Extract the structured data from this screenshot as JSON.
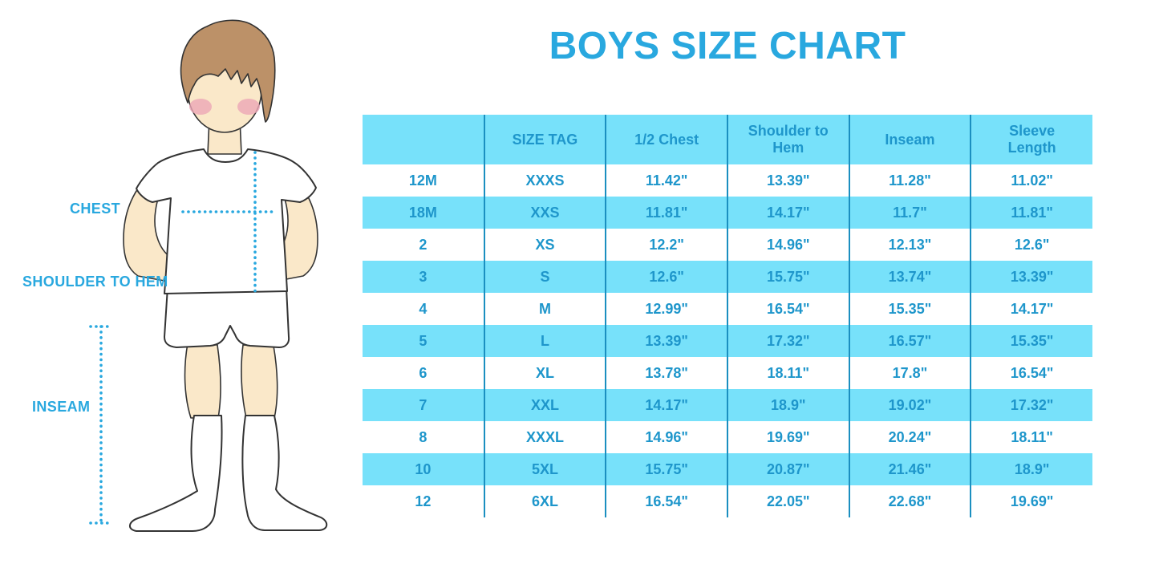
{
  "title": "BOYS SIZE CHART",
  "illustration": {
    "labels": {
      "chest": "CHEST",
      "shoulder_to_hem": "SHOULDER TO HEM",
      "inseam": "INSEAM"
    }
  },
  "table": {
    "headers": [
      "",
      "SIZE TAG",
      "1/2 Chest",
      "Shoulder to Hem",
      "Inseam",
      "Sleeve Length"
    ],
    "rows": [
      [
        "12M",
        "XXXS",
        "11.42\"",
        "13.39\"",
        "11.28\"",
        "11.02\""
      ],
      [
        "18M",
        "XXS",
        "11.81\"",
        "14.17\"",
        "11.7\"",
        "11.81\""
      ],
      [
        "2",
        "XS",
        "12.2\"",
        "14.96\"",
        "12.13\"",
        "12.6\""
      ],
      [
        "3",
        "S",
        "12.6\"",
        "15.75\"",
        "13.74\"",
        "13.39\""
      ],
      [
        "4",
        "M",
        "12.99\"",
        "16.54\"",
        "15.35\"",
        "14.17\""
      ],
      [
        "5",
        "L",
        "13.39\"",
        "17.32\"",
        "16.57\"",
        "15.35\""
      ],
      [
        "6",
        "XL",
        "13.78\"",
        "18.11\"",
        "17.8\"",
        "16.54\""
      ],
      [
        "7",
        "XXL",
        "14.17\"",
        "18.9\"",
        "19.02\"",
        "17.32\""
      ],
      [
        "8",
        "XXXL",
        "14.96\"",
        "19.69\"",
        "20.24\"",
        "18.11\""
      ],
      [
        "10",
        "5XL",
        "15.75\"",
        "20.87\"",
        "21.46\"",
        "18.9\""
      ],
      [
        "12",
        "6XL",
        "16.54\"",
        "22.05\"",
        "22.68\"",
        "19.69\""
      ]
    ]
  },
  "colors": {
    "accent_blue": "#29A8DF",
    "cell_text_blue": "#1E96CB",
    "row_cyan": "#77E1FA",
    "divider_blue": "#1B8FC0",
    "skin": "#FAE8C9",
    "hair": "#BC9168",
    "cheek": "#ECA6B6",
    "outline": "#333333"
  }
}
